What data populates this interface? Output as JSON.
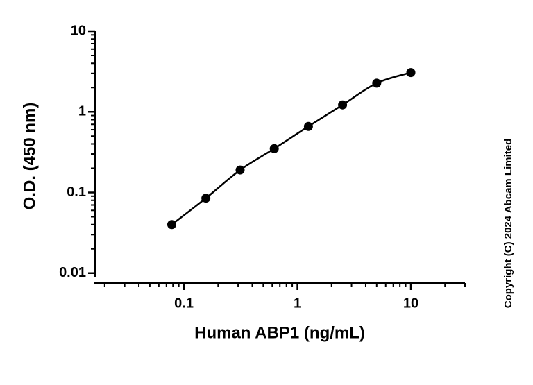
{
  "chart_data": {
    "type": "scatter",
    "x_label": "Human ABP1 (ng/mL)",
    "y_label": "O.D. (450 nm)",
    "copyright": "Copyright (C) 2024 Abcam Limited",
    "log_x": true,
    "log_y": true,
    "minor_ticks": true,
    "fit_curve": true,
    "color": "#000000",
    "xlim": [
      0.016,
      30
    ],
    "xticks": [
      0.1,
      1,
      10
    ],
    "ylim": [
      0.008,
      10
    ],
    "yticks": [
      0.01,
      0.1,
      1,
      10
    ],
    "series": [
      {
        "x": [
          0.078,
          0.156,
          0.3125,
          0.625,
          1.25,
          2.5,
          5,
          10
        ],
        "values": [
          0.04,
          0.085,
          0.19,
          0.35,
          0.66,
          1.22,
          2.27,
          3.07
        ]
      }
    ]
  }
}
